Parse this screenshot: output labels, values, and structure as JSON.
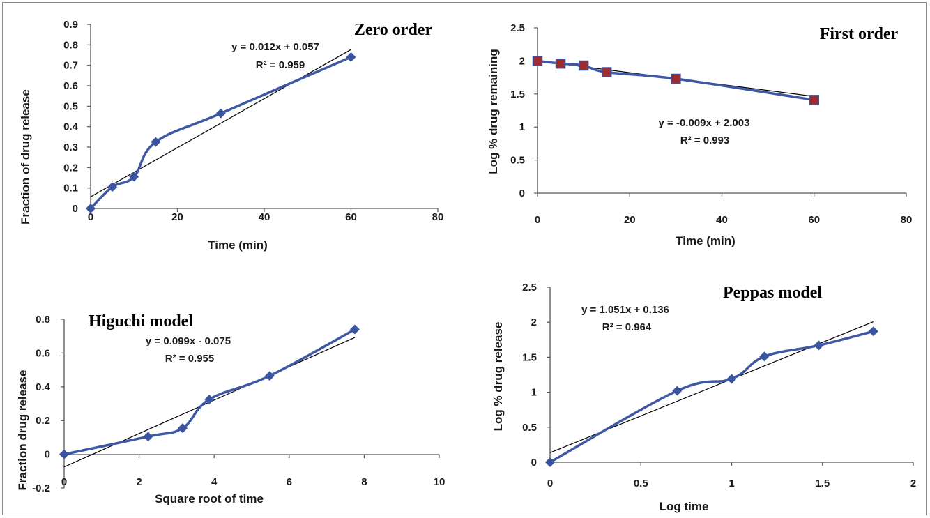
{
  "chart_data": [
    {
      "id": "zero",
      "type": "line",
      "title": "Zero order",
      "xlabel": "Time (min)",
      "ylabel": "Fraction of drug release",
      "xlim": [
        0,
        80
      ],
      "ylim": [
        0,
        0.9
      ],
      "xticks": [
        "0",
        "20",
        "40",
        "60",
        "80"
      ],
      "yticks": [
        "0",
        "0.1",
        "0.2",
        "0.3",
        "0.4",
        "0.5",
        "0.6",
        "0.7",
        "0.8",
        "0.9"
      ],
      "marker": "diamond",
      "series": [
        {
          "x": [
            0,
            5,
            10,
            15,
            30,
            60
          ],
          "y": [
            0,
            0.105,
            0.155,
            0.325,
            0.465,
            0.74
          ]
        }
      ],
      "fit": {
        "slope": 0.012,
        "intercept": 0.057,
        "x_range": [
          0,
          60
        ]
      },
      "equation": "y = 0.012x + 0.057",
      "r2": "R² = 0.959",
      "grid": false
    },
    {
      "id": "first",
      "type": "line",
      "title": "First order",
      "xlabel": "Time (min)",
      "ylabel": "Log % drug remaining",
      "xlim": [
        0,
        80
      ],
      "ylim": [
        0,
        2.5
      ],
      "xticks": [
        "0",
        "20",
        "40",
        "60",
        "80"
      ],
      "yticks": [
        "0",
        "0.5",
        "1",
        "1.5",
        "2",
        "2.5"
      ],
      "marker": "square",
      "series": [
        {
          "x": [
            0,
            5,
            10,
            15,
            30,
            60
          ],
          "y": [
            2.0,
            1.96,
            1.93,
            1.83,
            1.73,
            1.41
          ]
        }
      ],
      "fit": {
        "slope": -0.009,
        "intercept": 2.003,
        "x_range": [
          0,
          60
        ]
      },
      "equation": "y = -0.009x + 2.003",
      "r2": "R² = 0.993",
      "grid": false
    },
    {
      "id": "higuchi",
      "type": "line",
      "title": "Higuchi model",
      "xlabel": "Square root of time",
      "ylabel": "Fraction  drug release",
      "xlim": [
        0,
        10
      ],
      "ylim": [
        -0.2,
        0.8
      ],
      "xticks": [
        "0",
        "2",
        "4",
        "6",
        "8",
        "10"
      ],
      "yticks": [
        "-0.2",
        "0",
        "0.2",
        "0.4",
        "0.6",
        "0.8"
      ],
      "marker": "diamond",
      "series": [
        {
          "x": [
            0,
            2.24,
            3.16,
            3.87,
            5.48,
            7.75
          ],
          "y": [
            0,
            0.105,
            0.155,
            0.325,
            0.465,
            0.74
          ]
        }
      ],
      "fit": {
        "slope": 0.099,
        "intercept": -0.075,
        "x_range": [
          0,
          7.75
        ]
      },
      "equation": "y = 0.099x - 0.075",
      "r2": "R² = 0.955",
      "grid": false
    },
    {
      "id": "peppas",
      "type": "line",
      "title": "Peppas model",
      "xlabel": "Log time",
      "ylabel": "Log % drug release",
      "xlim": [
        0,
        2
      ],
      "ylim": [
        0,
        2.5
      ],
      "xticks": [
        "0",
        "0.5",
        "1",
        "1.5",
        "2"
      ],
      "yticks": [
        "0",
        "0.5",
        "1",
        "1.5",
        "2",
        "2.5"
      ],
      "marker": "diamond",
      "series": [
        {
          "x": [
            0,
            0.7,
            1.0,
            1.18,
            1.48,
            1.78
          ],
          "y": [
            0,
            1.02,
            1.19,
            1.51,
            1.67,
            1.87
          ]
        }
      ],
      "fit": {
        "slope": 1.051,
        "intercept": 0.136,
        "x_range": [
          0,
          1.78
        ]
      },
      "equation": "y = 1.051x + 0.136",
      "r2": "R² = 0.964",
      "grid": false
    }
  ],
  "colors": {
    "series_line": "#3e58a5",
    "marker_fill": "#3b54a0",
    "square_fill": "#9b2d30",
    "square_edge": "#3b54a0",
    "fit_line": "#000000",
    "axis": "#555555"
  }
}
